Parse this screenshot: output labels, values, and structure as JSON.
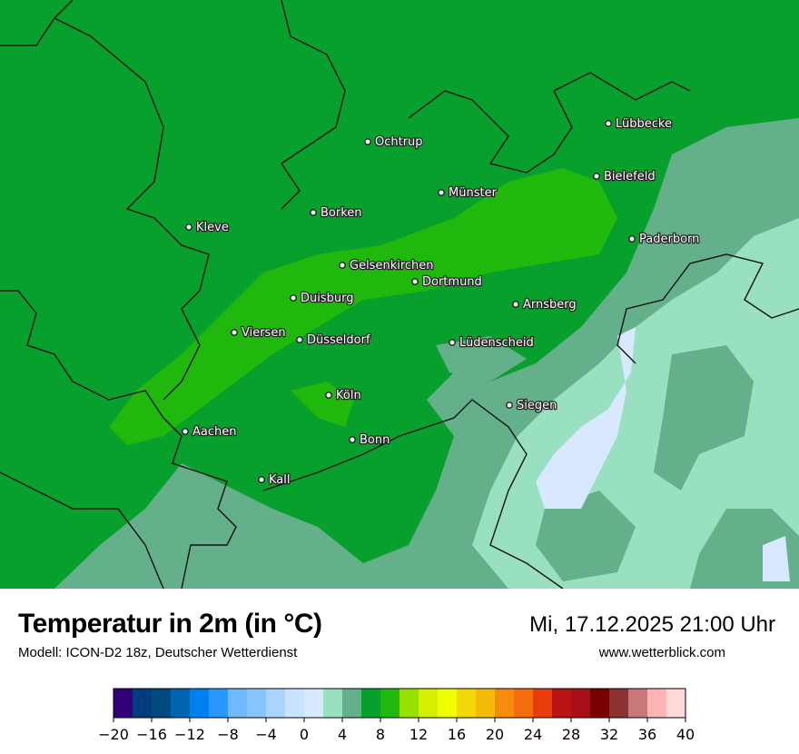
{
  "header": {
    "title": "Temperatur in 2m (in °C)",
    "subtitle": "Modell: ICON-D2 18z, Deutscher Wetterdienst",
    "datetime": "Mi, 17.12.2025 21:00 Uhr",
    "website": "www.wetterblick.com"
  },
  "map": {
    "colors": {
      "base_green": "#08a02c",
      "light_green": "#20b80c",
      "gray_green": "#64b08a",
      "mint": "#98e0c0",
      "pale_blue": "#d8e8ff",
      "border": "#111111"
    },
    "cities": [
      {
        "name": "Ochtrup"
      },
      {
        "name": "Lübbecke"
      },
      {
        "name": "Bielefeld"
      },
      {
        "name": "Münster"
      },
      {
        "name": "Borken"
      },
      {
        "name": "Kleve"
      },
      {
        "name": "Paderborn"
      },
      {
        "name": "Gelsenkirchen"
      },
      {
        "name": "Dortmund"
      },
      {
        "name": "Duisburg"
      },
      {
        "name": "Arnsberg"
      },
      {
        "name": "Viersen"
      },
      {
        "name": "Düsseldorf"
      },
      {
        "name": "Lüdenscheid"
      },
      {
        "name": "Köln"
      },
      {
        "name": "Siegen"
      },
      {
        "name": "Aachen"
      },
      {
        "name": "Bonn"
      },
      {
        "name": "Kall"
      }
    ]
  },
  "legend": {
    "min": -20,
    "max": 40,
    "step": 2,
    "tick_labels": [
      "−20",
      "−16",
      "−12",
      "−8",
      "−4",
      "0",
      "4",
      "8",
      "12",
      "16",
      "20",
      "24",
      "28",
      "32",
      "36",
      "40"
    ],
    "colors": [
      "#330077",
      "#003c80",
      "#004a80",
      "#0064b0",
      "#0080f0",
      "#2898ff",
      "#70b8ff",
      "#88c4ff",
      "#a8d4ff",
      "#c8e2ff",
      "#d8e8ff",
      "#98e0c0",
      "#64b08a",
      "#08a02c",
      "#20b80c",
      "#98e000",
      "#d4f000",
      "#f0ff00",
      "#f4d808",
      "#f4bc08",
      "#f48c0c",
      "#f46c0c",
      "#e83c0c",
      "#b81414",
      "#a81018",
      "#780000",
      "#8c3030",
      "#c87878",
      "#ffb4b4",
      "#ffd8d8"
    ]
  }
}
